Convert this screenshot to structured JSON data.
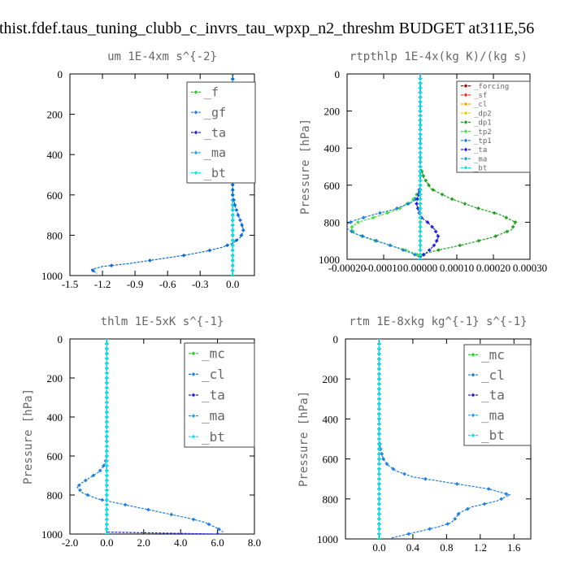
{
  "figure_title": "thist.fdef.taus_tuning_clubb_c_invrs_tau_wpxp_n2_threshm  BUDGET at311E,56",
  "chart_data": [
    {
      "type": "line",
      "title": "um   1E-4xm s^{-2}",
      "ylabel": "",
      "xlabel": "",
      "xlim": [
        -1.5,
        0.2
      ],
      "ylim": [
        1000,
        0
      ],
      "xticks": [
        -1.5,
        -1.2,
        -0.9,
        -0.6,
        -0.3,
        0.0
      ],
      "xtick_labels": [
        "-1.5",
        "-1.2",
        "-0.9",
        "-0.6",
        "-0.3",
        "0.0"
      ],
      "yticks": [
        0,
        200,
        400,
        600,
        800,
        1000
      ],
      "ytick_labels": [
        "0",
        "200",
        "400",
        "600",
        "800",
        "1000"
      ],
      "legend": "top-right",
      "series": [
        {
          "name": "_f",
          "color": "#22cc22",
          "x": [
            0.0,
            0.0
          ],
          "y": [
            0,
            1000
          ]
        },
        {
          "name": "_gf",
          "color": "#1e7fe0",
          "x": [
            0.0,
            0.0
          ],
          "y": [
            0,
            1000
          ]
        },
        {
          "name": "_ta",
          "color": "#1e1ee0",
          "x": [
            0.0,
            0.0,
            0.0
          ],
          "y": [
            0,
            950,
            1000
          ]
        },
        {
          "name": "_ma",
          "color": "#1ea0e0",
          "x": [
            0.0,
            0.0
          ],
          "y": [
            0,
            1000
          ]
        },
        {
          "name": "_bt",
          "color": "#00e5e5",
          "x": [
            0.0,
            0.0
          ],
          "y": [
            0,
            1000
          ]
        },
        {
          "name": "",
          "color": "#0a6ad8",
          "x": [
            0.0,
            0.0,
            0.02,
            0.05,
            0.08,
            0.1,
            0.07,
            0.0,
            -0.1,
            -0.25,
            -0.45,
            -0.7,
            -0.95,
            -1.2,
            -1.3,
            -1.25
          ],
          "y": [
            0,
            600,
            650,
            700,
            740,
            780,
            810,
            840,
            860,
            880,
            900,
            920,
            940,
            955,
            970,
            990
          ]
        }
      ]
    },
    {
      "type": "line",
      "title": "rtpthlp   1E-4x(kg K)/(kg s)",
      "ylabel": "Pressure [hPa]",
      "xlabel": "",
      "xlim": [
        -0.0002,
        0.0003
      ],
      "ylim": [
        1000,
        0
      ],
      "xticks": [
        -0.0002,
        -0.0001,
        0.0,
        0.0001,
        0.0002,
        0.0003
      ],
      "xtick_labels": [
        "-0.00020",
        "-0.00010",
        "0.00000",
        "0.00010",
        "0.00020",
        "0.00030"
      ],
      "yticks": [
        0,
        200,
        400,
        600,
        800,
        1000
      ],
      "ytick_labels": [
        "0",
        "200",
        "400",
        "600",
        "800",
        "1000"
      ],
      "legend": "top-right",
      "series": [
        {
          "name": "_forcing",
          "color": "#b00000",
          "x": [
            0.0,
            0.0
          ],
          "y": [
            0,
            1000
          ]
        },
        {
          "name": "_sf",
          "color": "#ff2020",
          "x": [
            0.0,
            0.0
          ],
          "y": [
            0,
            1000
          ]
        },
        {
          "name": "_cl",
          "color": "#ffa500",
          "x": [
            0.0,
            0.0
          ],
          "y": [
            0,
            1000
          ]
        },
        {
          "name": "_dp2",
          "color": "#e8d000",
          "x": [
            0.0,
            0.0
          ],
          "y": [
            0,
            1000
          ]
        },
        {
          "name": "_dp1",
          "color": "#20a020",
          "x": [
            0.0,
            0.0,
            1e-05,
            3e-05,
            8e-05,
            0.00015,
            0.00022,
            0.00026,
            0.00025,
            0.0002,
            0.00012,
            5e-05,
            1e-05,
            0.0
          ],
          "y": [
            0,
            500,
            560,
            620,
            670,
            720,
            760,
            800,
            840,
            880,
            920,
            950,
            970,
            990
          ]
        },
        {
          "name": "_tp2",
          "color": "#40e040",
          "x": [
            0.0,
            0.0,
            -2e-05,
            -6e-05,
            -0.00012,
            -0.00017,
            -0.00019,
            -0.00018,
            -0.00014,
            -9e-05,
            -4e-05,
            -1e-05,
            0.0
          ],
          "y": [
            0,
            620,
            680,
            730,
            770,
            800,
            830,
            860,
            890,
            920,
            950,
            970,
            990
          ]
        },
        {
          "name": "_tp1",
          "color": "#1e7fe0",
          "x": [
            0.0,
            0.0,
            -2e-05,
            -7e-05,
            -0.00013,
            -0.00018,
            -0.00021,
            -0.00018,
            -0.00012,
            -6e-05,
            -2e-05,
            0.0
          ],
          "y": [
            0,
            650,
            690,
            730,
            760,
            790,
            820,
            860,
            900,
            940,
            970,
            990
          ]
        },
        {
          "name": "_ta",
          "color": "#2020e0",
          "x": [
            0.0,
            0.0,
            -1e-05,
            0.0,
            2e-05,
            4e-05,
            5e-05,
            4e-05,
            2e-05,
            0.0
          ],
          "y": [
            0,
            600,
            700,
            770,
            800,
            840,
            880,
            920,
            960,
            990
          ]
        },
        {
          "name": "_ma",
          "color": "#1ea0e0",
          "x": [
            0.0,
            0.0
          ],
          "y": [
            0,
            1000
          ]
        },
        {
          "name": "_bt",
          "color": "#00e5e5",
          "x": [
            0.0,
            0.0
          ],
          "y": [
            0,
            1000
          ]
        }
      ]
    },
    {
      "type": "line",
      "title": "thlm   1E-5xK s^{-1}",
      "ylabel": "Pressure [hPa]",
      "xlabel": "",
      "xlim": [
        -2.0,
        8.0
      ],
      "ylim": [
        1000,
        0
      ],
      "xticks": [
        -2.0,
        0.0,
        2.0,
        4.0,
        6.0,
        8.0
      ],
      "xtick_labels": [
        "-2.0",
        "0.0",
        "2.0",
        "4.0",
        "6.0",
        "8.0"
      ],
      "yticks": [
        0,
        200,
        400,
        600,
        800,
        1000
      ],
      "ytick_labels": [
        "0",
        "200",
        "400",
        "600",
        "800",
        "1000"
      ],
      "legend": "top-right",
      "series": [
        {
          "name": "_mc",
          "color": "#22cc22",
          "x": [
            0.0,
            0.0
          ],
          "y": [
            0,
            1000
          ]
        },
        {
          "name": "_cl",
          "color": "#1e7fe0",
          "x": [
            0.0,
            0.0,
            -0.1,
            -0.4,
            -0.9,
            -1.4,
            -1.6,
            -1.3,
            -0.5,
            0.5,
            1.5,
            2.5,
            3.5,
            4.5,
            5.3,
            6.0,
            6.3
          ],
          "y": [
            0,
            600,
            640,
            680,
            710,
            740,
            760,
            790,
            820,
            840,
            860,
            880,
            900,
            920,
            940,
            970,
            990
          ]
        },
        {
          "name": "_ta",
          "color": "#2020e0",
          "x": [
            0.0,
            0.0,
            6.0
          ],
          "y": [
            0,
            990,
            1000
          ]
        },
        {
          "name": "_ma",
          "color": "#1ea0e0",
          "x": [
            0.0,
            0.0
          ],
          "y": [
            0,
            1000
          ]
        },
        {
          "name": "_bt",
          "color": "#00e5e5",
          "x": [
            0.0,
            0.0
          ],
          "y": [
            0,
            1000
          ]
        }
      ]
    },
    {
      "type": "line",
      "title": "rtm   1E-8xkg kg^{-1} s^{-1}",
      "ylabel": "Pressure [hPa]",
      "xlabel": "",
      "xlim": [
        -0.4,
        1.8
      ],
      "ylim": [
        1000,
        0
      ],
      "xticks": [
        0.0,
        0.4,
        0.8,
        1.2,
        1.6
      ],
      "xtick_labels": [
        "0.0",
        "0.4",
        "0.8",
        "1.2",
        "1.6"
      ],
      "yticks": [
        0,
        200,
        400,
        600,
        800,
        1000
      ],
      "ytick_labels": [
        "0",
        "200",
        "400",
        "600",
        "800",
        "1000"
      ],
      "legend": "top-right",
      "series": [
        {
          "name": "_mc",
          "color": "#22cc22",
          "x": [
            0.0,
            0.0
          ],
          "y": [
            0,
            1000
          ]
        },
        {
          "name": "_cl",
          "color": "#1e7fe0",
          "x": [
            0.0,
            0.0,
            0.02,
            0.05,
            0.1,
            0.2,
            0.4,
            0.7,
            1.0,
            1.3,
            1.55,
            1.4,
            1.1,
            0.95,
            0.9,
            0.85,
            0.7,
            0.5,
            0.3,
            0.15
          ],
          "y": [
            0,
            500,
            560,
            600,
            630,
            660,
            690,
            710,
            730,
            750,
            780,
            810,
            840,
            870,
            900,
            920,
            940,
            960,
            980,
            995
          ]
        },
        {
          "name": "_ta",
          "color": "#2020e0",
          "x": [
            0.0,
            0.0
          ],
          "y": [
            0,
            1000
          ]
        },
        {
          "name": "_ma",
          "color": "#1ea0e0",
          "x": [
            0.0,
            0.0
          ],
          "y": [
            0,
            1000
          ]
        },
        {
          "name": "_bt",
          "color": "#00e5e5",
          "x": [
            0.0,
            0.0
          ],
          "y": [
            0,
            1000
          ]
        }
      ]
    }
  ]
}
